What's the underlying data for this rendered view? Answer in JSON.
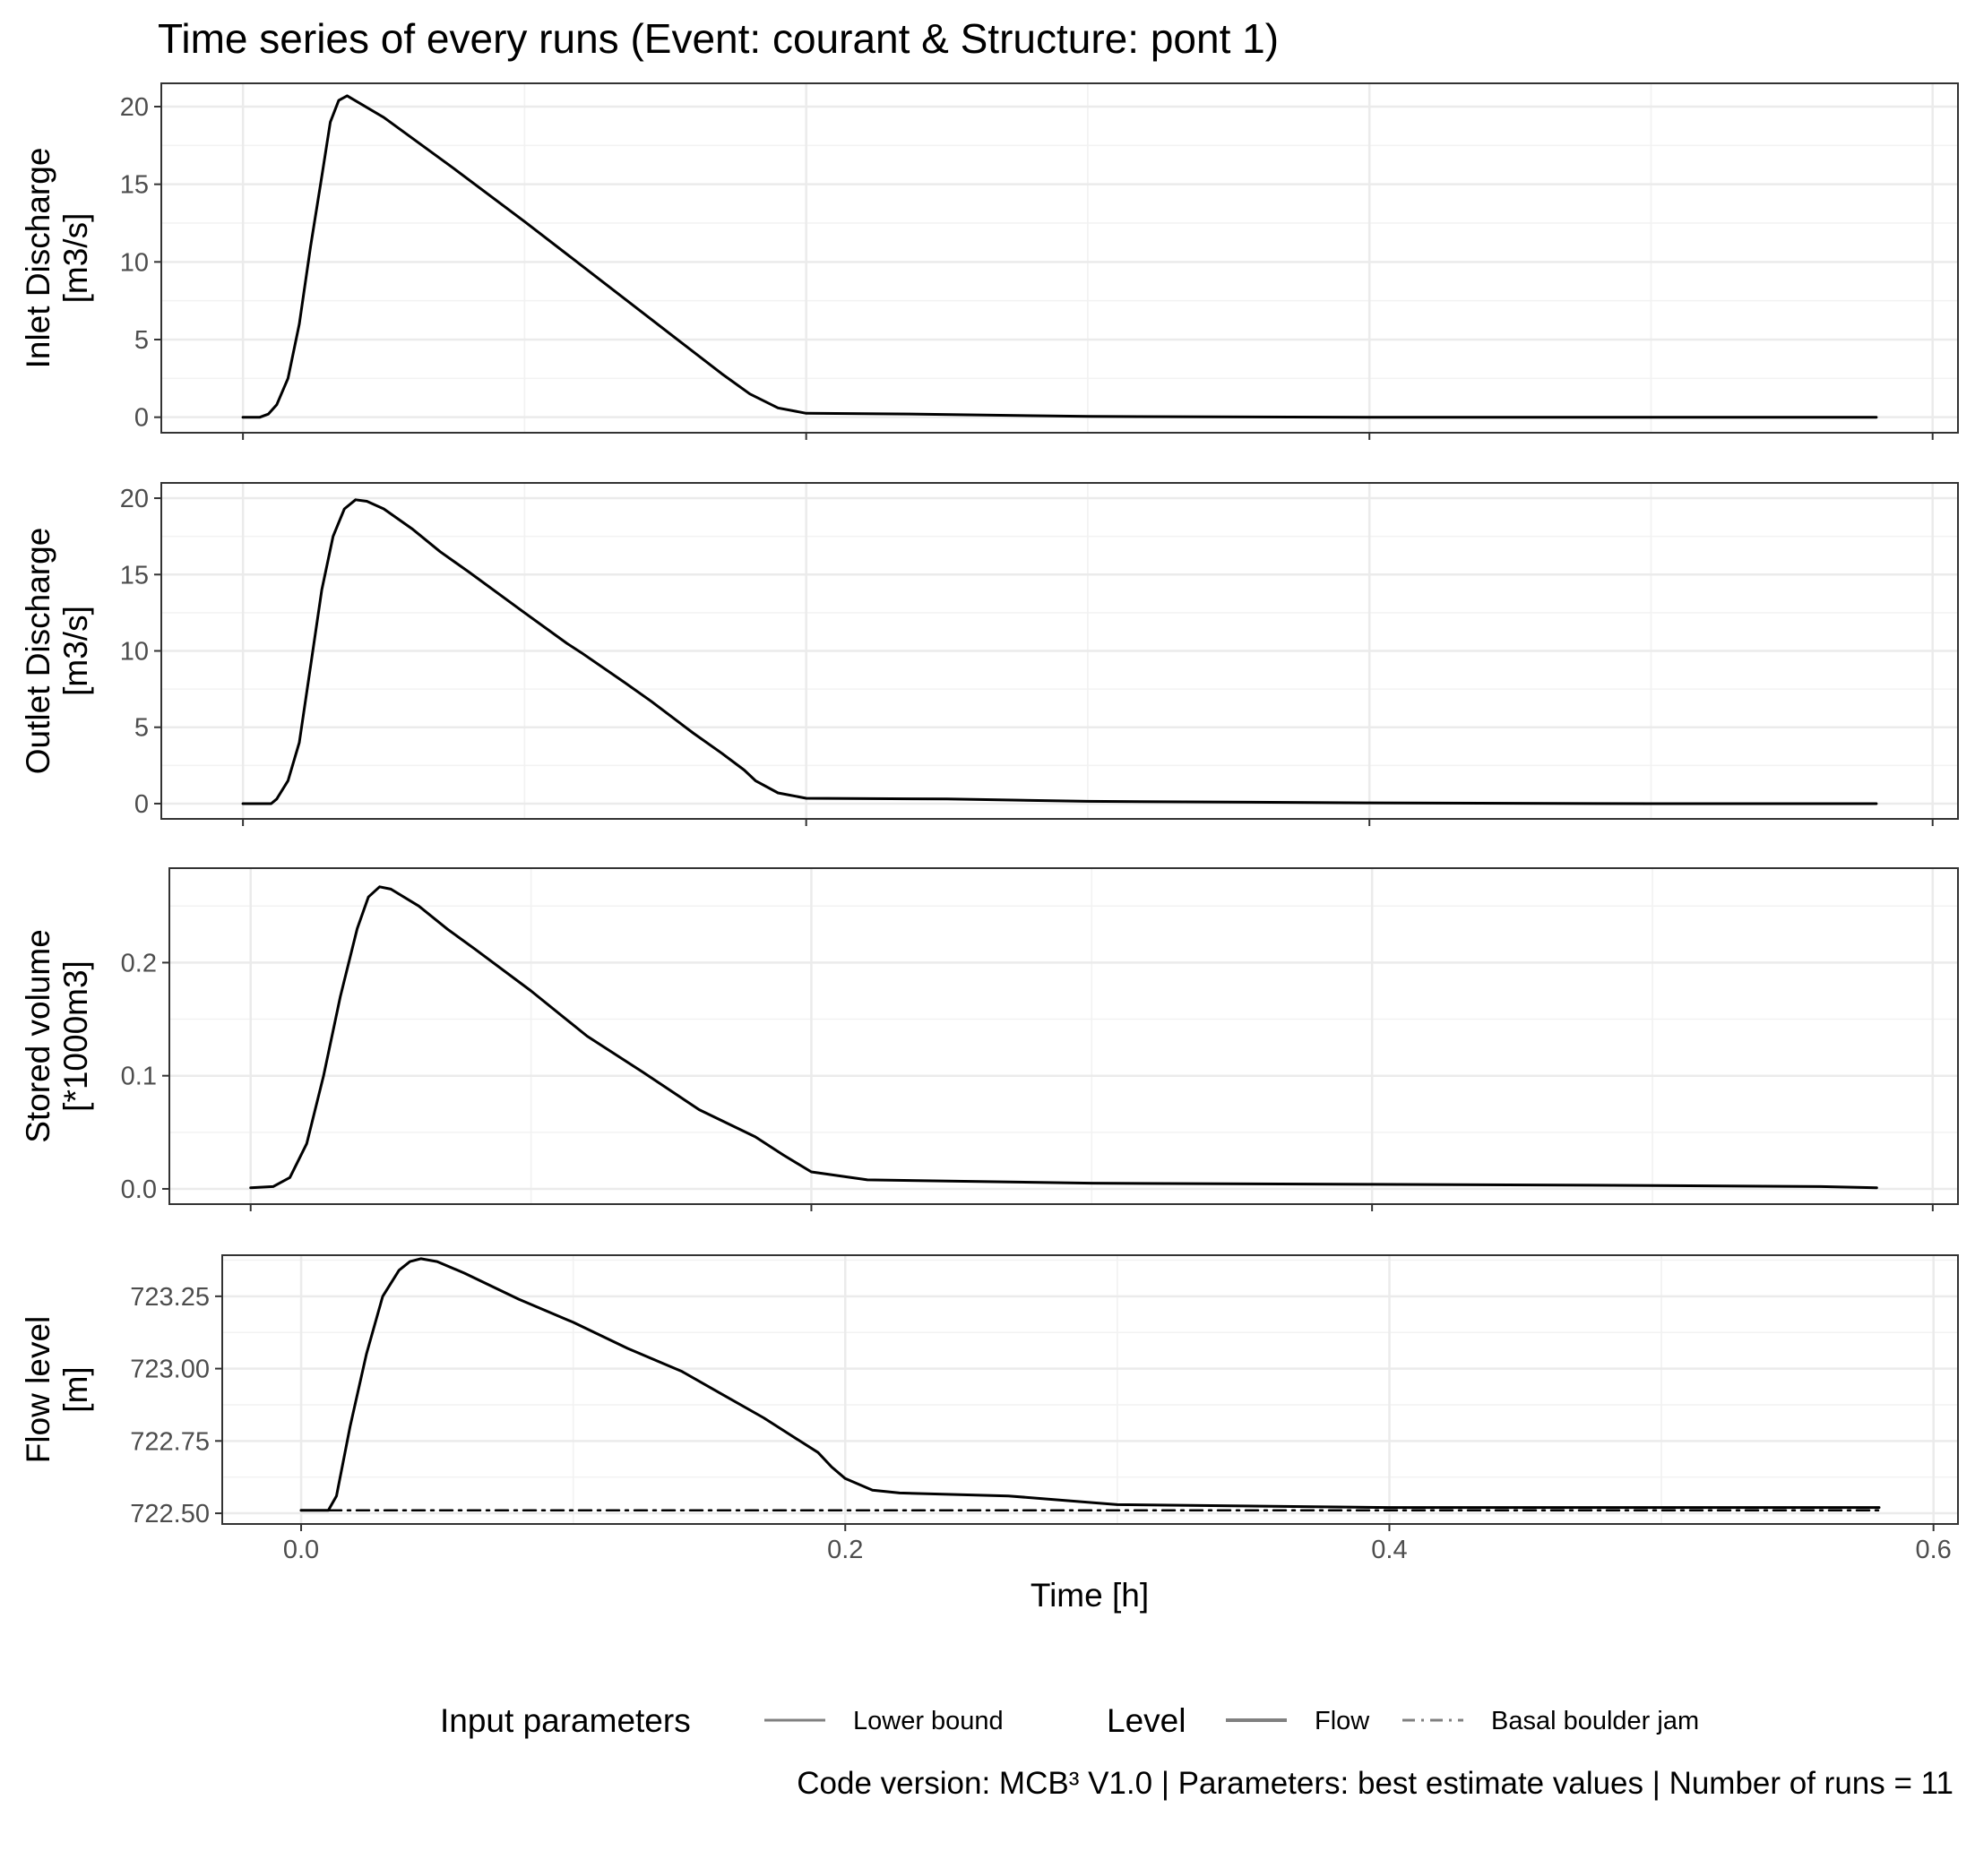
{
  "title": "Time series of every runs (Event: courant & Structure: pont 1)",
  "xlabel": "Time [h]",
  "caption": "Code version: MCB³ V1.0  |  Parameters:  best estimate values  |  Number of runs = 11",
  "legend": {
    "input_title": "Input parameters",
    "input_items": [
      {
        "label": "Lower bound",
        "style": "solid",
        "color": "#808080"
      }
    ],
    "level_title": "Level",
    "level_items": [
      {
        "label": "Flow",
        "style": "solid",
        "color": "#808080"
      },
      {
        "label": "Basal boulder jam",
        "style": "dashdot",
        "color": "#808080"
      }
    ]
  },
  "chart_data": [
    {
      "type": "line",
      "ylabel": [
        "Inlet Discharge",
        "[m3/s]"
      ],
      "xlim": [
        -0.029,
        0.609
      ],
      "ylim": [
        -1.0,
        21.5
      ],
      "xticks": [
        0.0,
        0.2,
        0.4,
        0.6
      ],
      "xtick_labels": [],
      "yticks": [
        0,
        5,
        10,
        15,
        20
      ],
      "ytick_labels": [
        "0",
        "5",
        "10",
        "15",
        "20"
      ],
      "grid": true,
      "series": [
        {
          "style": "solid",
          "color": "#000000",
          "x": [
            0.0,
            0.006,
            0.009,
            0.012,
            0.016,
            0.02,
            0.024,
            0.028,
            0.031,
            0.034,
            0.037,
            0.05,
            0.075,
            0.1,
            0.125,
            0.15,
            0.17,
            0.18,
            0.19,
            0.2,
            0.24,
            0.3,
            0.4,
            0.5,
            0.58
          ],
          "y": [
            0.0,
            0.0,
            0.2,
            0.8,
            2.5,
            6.0,
            11.0,
            15.5,
            19.0,
            20.4,
            20.7,
            19.3,
            16.0,
            12.6,
            9.1,
            5.6,
            2.8,
            1.5,
            0.6,
            0.25,
            0.2,
            0.05,
            0.0,
            0.0,
            0.0
          ]
        }
      ]
    },
    {
      "type": "line",
      "ylabel": [
        "Outlet Discharge",
        "[m3/s]"
      ],
      "xlim": [
        -0.029,
        0.609
      ],
      "ylim": [
        -1.0,
        21.0
      ],
      "xticks": [
        0.0,
        0.2,
        0.4,
        0.6
      ],
      "xtick_labels": [],
      "yticks": [
        0,
        5,
        10,
        15,
        20
      ],
      "ytick_labels": [
        "0",
        "5",
        "10",
        "15",
        "20"
      ],
      "grid": true,
      "series": [
        {
          "style": "solid",
          "color": "#000000",
          "x": [
            0.0,
            0.01,
            0.012,
            0.016,
            0.02,
            0.024,
            0.028,
            0.032,
            0.036,
            0.04,
            0.044,
            0.05,
            0.06,
            0.07,
            0.08,
            0.1,
            0.115,
            0.12,
            0.135,
            0.145,
            0.155,
            0.16,
            0.17,
            0.178,
            0.182,
            0.19,
            0.2,
            0.25,
            0.3,
            0.4,
            0.5,
            0.58
          ],
          "y": [
            0.0,
            0.0,
            0.3,
            1.5,
            4.0,
            9.0,
            14.0,
            17.5,
            19.3,
            19.9,
            19.8,
            19.3,
            18.0,
            16.5,
            15.2,
            12.5,
            10.5,
            9.9,
            8.0,
            6.7,
            5.3,
            4.6,
            3.3,
            2.2,
            1.5,
            0.7,
            0.35,
            0.3,
            0.15,
            0.05,
            0.0,
            0.0
          ]
        }
      ]
    },
    {
      "type": "line",
      "ylabel": [
        "Stored volume",
        "[*1000m3]"
      ],
      "xlim": [
        -0.029,
        0.609
      ],
      "ylim": [
        -0.0135,
        0.2835
      ],
      "xticks": [
        0.0,
        0.2,
        0.4,
        0.6
      ],
      "xtick_labels": [],
      "yticks": [
        0.0,
        0.1,
        0.2
      ],
      "ytick_labels": [
        "0.0",
        "0.1",
        "0.2"
      ],
      "grid": true,
      "series": [
        {
          "style": "solid",
          "color": "#000000",
          "x": [
            0.0,
            0.008,
            0.014,
            0.02,
            0.026,
            0.032,
            0.038,
            0.042,
            0.046,
            0.05,
            0.06,
            0.07,
            0.08,
            0.1,
            0.12,
            0.14,
            0.16,
            0.18,
            0.19,
            0.2,
            0.22,
            0.3,
            0.4,
            0.5,
            0.56,
            0.58
          ],
          "y": [
            0.001,
            0.002,
            0.01,
            0.04,
            0.1,
            0.17,
            0.23,
            0.258,
            0.267,
            0.265,
            0.25,
            0.23,
            0.212,
            0.175,
            0.135,
            0.103,
            0.07,
            0.046,
            0.03,
            0.015,
            0.008,
            0.005,
            0.004,
            0.003,
            0.002,
            0.001
          ]
        }
      ]
    },
    {
      "type": "line",
      "ylabel": [
        "Flow level",
        "[m]"
      ],
      "xlim": [
        -0.029,
        0.609
      ],
      "ylim": [
        722.463,
        723.392
      ],
      "xticks": [
        0.0,
        0.2,
        0.4,
        0.6
      ],
      "xtick_labels": [
        "0.0",
        "0.2",
        "0.4",
        "0.6"
      ],
      "yticks": [
        722.5,
        722.75,
        723.0,
        723.25
      ],
      "ytick_labels": [
        "722.50",
        "722.75",
        "723.00",
        "723.25"
      ],
      "grid": true,
      "series": [
        {
          "style": "solid",
          "color": "#000000",
          "x": [
            0.0,
            0.01,
            0.013,
            0.018,
            0.024,
            0.03,
            0.036,
            0.04,
            0.044,
            0.05,
            0.06,
            0.08,
            0.1,
            0.12,
            0.14,
            0.155,
            0.17,
            0.18,
            0.19,
            0.195,
            0.2,
            0.21,
            0.22,
            0.26,
            0.3,
            0.4,
            0.5,
            0.58
          ],
          "y": [
            722.51,
            722.51,
            722.56,
            722.8,
            723.05,
            723.25,
            723.34,
            723.37,
            723.38,
            723.37,
            723.33,
            723.24,
            723.16,
            723.07,
            722.99,
            722.91,
            722.83,
            722.77,
            722.71,
            722.66,
            722.62,
            722.58,
            722.57,
            722.56,
            722.53,
            722.52,
            722.52,
            722.52
          ]
        },
        {
          "style": "dashdot",
          "color": "#000000",
          "x": [
            0.0,
            0.58
          ],
          "y": [
            722.51,
            722.51
          ]
        }
      ]
    }
  ]
}
